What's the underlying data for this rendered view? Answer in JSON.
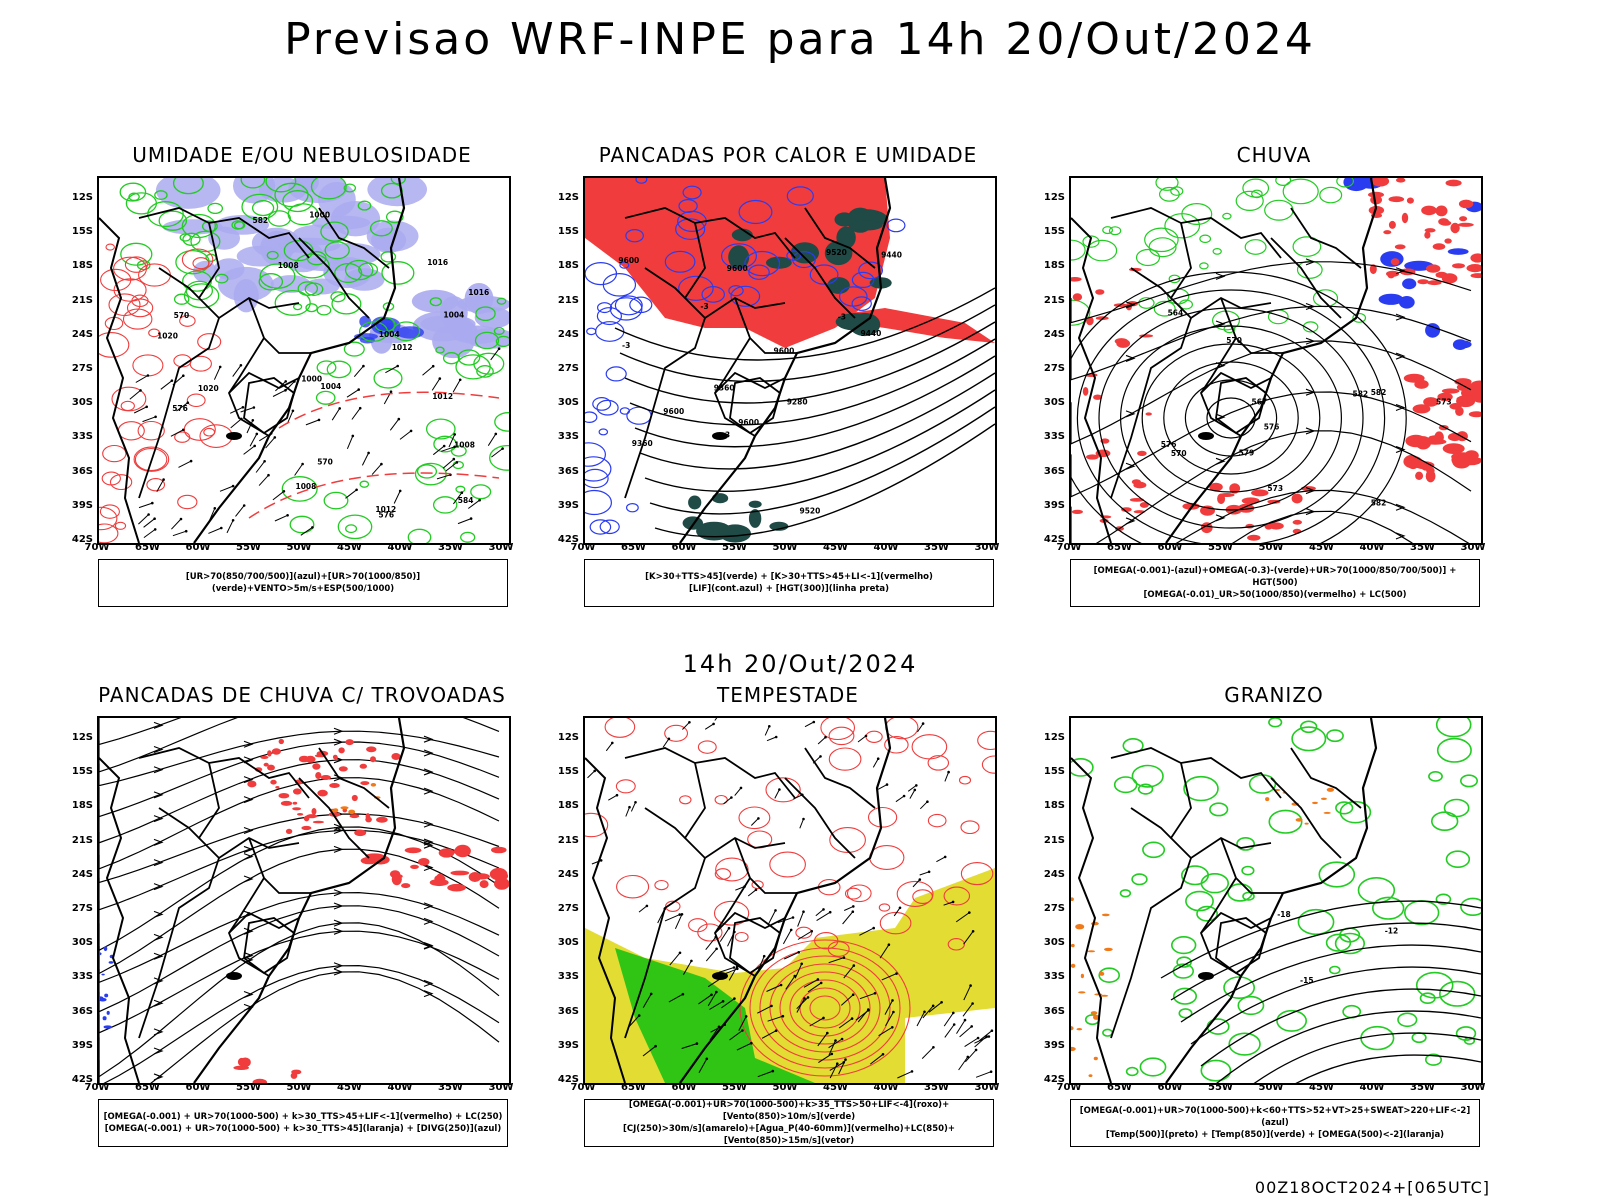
{
  "header": {
    "title": "Previsao WRF-INPE  para 14h 20/Out/2024",
    "mid_title": "14h 20/Out/2024",
    "footer": "00Z18OCT2024+[065UTC]"
  },
  "axes": {
    "lat_labels": [
      "12S",
      "15S",
      "18S",
      "21S",
      "24S",
      "27S",
      "30S",
      "33S",
      "36S",
      "39S",
      "42S"
    ],
    "lon_labels": [
      "70W",
      "65W",
      "60W",
      "55W",
      "50W",
      "45W",
      "40W",
      "35W",
      "30W"
    ]
  },
  "panels": [
    {
      "id": "p1",
      "title": "UMIDADE E/OU NEBULOSIDADE",
      "legend": [
        "[UR>70(850/700/500)](azul)+[UR>70(1000/850)](verde)+VENTO>5m/s+ESP(500/1000)"
      ],
      "labels": [
        "1008",
        "1012",
        "1016",
        "1004",
        "1008",
        "1012",
        "1016",
        "1020",
        "1004",
        "1008",
        "1000",
        "1004",
        "1012",
        "576",
        "570",
        "570",
        "576",
        "582",
        "584",
        "1020",
        "1000"
      ]
    },
    {
      "id": "p2",
      "title": "PANCADAS POR CALOR E UMIDADE",
      "legend": [
        "[K>30+TTS>45](verde) + [K>30+TTS>45+LI<-1](vermelho)",
        "[LIF](cont.azul) + [HGT(300)](linha preta)"
      ],
      "labels": [
        "9600",
        "9600",
        "9600",
        "9600",
        "9600",
        "9520",
        "9440",
        "9360",
        "9280",
        "9520",
        "9440",
        "9360",
        "-3",
        "-3",
        "-3",
        "-3"
      ]
    },
    {
      "id": "p3",
      "title": "CHUVA",
      "legend": [
        "[OMEGA(-0.001)-(azul)+OMEGA(-0.3)-(verde)+UR>70(1000/850/700/500)] + HGT(500)",
        "[OMEGA(-0.01)_UR>50(1000/850)(vermelho) + LC(500)"
      ],
      "labels": [
        "582",
        "582",
        "582",
        "576",
        "573",
        "570",
        "567",
        "576",
        "579",
        "573",
        "570",
        "564"
      ]
    },
    {
      "id": "p4",
      "title": "PANCADAS DE CHUVA C/ TROVOADAS",
      "legend": [
        "[OMEGA(-0.001) + UR>70(1000-500) + k>30_TTS>45+LIF<-1](vermelho) + LC(250)",
        "[OMEGA(-0.001) + UR>70(1000-500) + k>30_TTS>45](laranja) + [DIVG(250)](azul)"
      ],
      "labels": []
    },
    {
      "id": "p5",
      "title": "TEMPESTADE",
      "legend": [
        "[OMEGA(-0.001)+UR>70(1000-500)+k>35_TTS>50+LIF<-4](roxo)+[Vento(850)>10m/s](verde)",
        "[CJ(250)>30m/s](amarelo)+[Agua_P(40-60mm)](vermelho)+LC(850)+[Vento(850)>15m/s](vetor)"
      ],
      "labels": []
    },
    {
      "id": "p6",
      "title": "GRANIZO",
      "legend": [
        "[OMEGA(-0.001)+UR>70(1000-500)+k<60+TTS>52+VT>25+SWEAT>220+LIF<-2](azul)",
        "[Temp(500)](preto) + [Temp(850)](verde) + [OMEGA(500)<-2](laranja)"
      ],
      "labels": [
        "-12",
        "-15",
        "-18"
      ]
    }
  ],
  "colors": {
    "red": "#f03c3c",
    "green": "#22cc22",
    "blue": "#2a3cf0",
    "lavender": "#aaaaf0",
    "darkteal": "#1f4a46",
    "yellow": "#e2dc33",
    "brightgreen": "#10c010",
    "orange": "#f07a1a",
    "purple": "#aa33cc"
  }
}
